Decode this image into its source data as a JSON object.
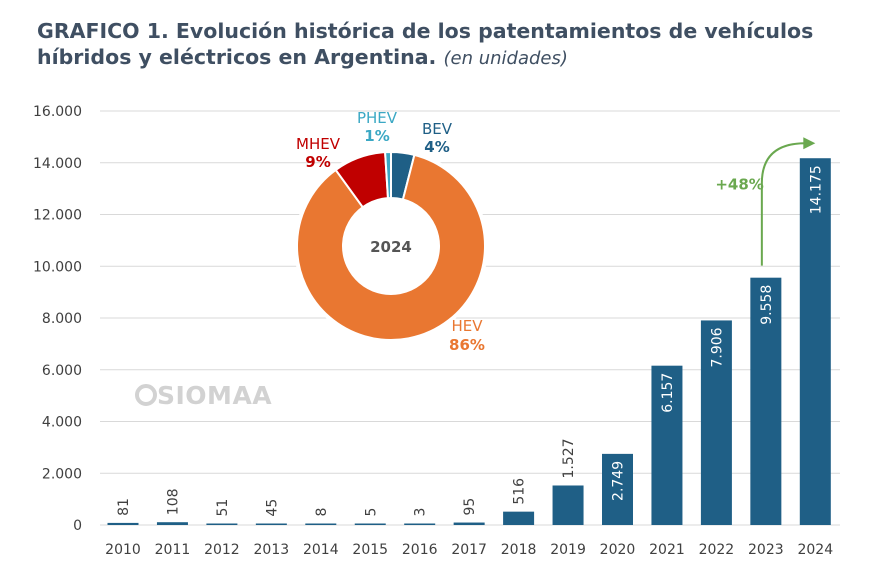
{
  "header": {
    "title": "GRAFICO 1. Evolución histórica de los patentamientos de vehículos híbridos y eléctricos en Argentina.",
    "subtitle": "(en unidades)"
  },
  "watermark": "SIOMAA",
  "colors": {
    "bar": "#1f5f86",
    "grid": "#d9d9d9",
    "axis_text": "#404040",
    "growth": "#6aa84f"
  },
  "chart_data": [
    {
      "type": "bar",
      "title": "GRAFICO 1. Evolución histórica de los patentamientos de vehículos híbridos y eléctricos en Argentina.",
      "subtitle": "(en unidades)",
      "xlabel": "",
      "ylabel": "",
      "categories": [
        "2010",
        "2011",
        "2012",
        "2013",
        "2014",
        "2015",
        "2016",
        "2017",
        "2018",
        "2019",
        "2020",
        "2021",
        "2022",
        "2023",
        "2024"
      ],
      "values": [
        81,
        108,
        51,
        45,
        8,
        5,
        3,
        95,
        516,
        1527,
        2749,
        6157,
        7906,
        9558,
        14175
      ],
      "value_labels": [
        "81",
        "108",
        "51",
        "45",
        "8",
        "5",
        "3",
        "95",
        "516",
        "1.527",
        "2.749",
        "6.157",
        "7.906",
        "9.558",
        "14.175"
      ],
      "ylim": [
        0,
        16000
      ],
      "yticks": [
        0,
        2000,
        4000,
        6000,
        8000,
        10000,
        12000,
        14000,
        16000
      ],
      "ytick_labels": [
        "0",
        "2.000",
        "4.000",
        "6.000",
        "8.000",
        "10.000",
        "12.000",
        "14.000",
        "16.000"
      ],
      "grid": true,
      "annotation": {
        "text": "+48%",
        "from": "2023",
        "to": "2024"
      }
    },
    {
      "type": "pie",
      "donut": true,
      "center_label": "2024",
      "slices": [
        {
          "name": "BEV",
          "label": "4%",
          "value": 4,
          "color": "#1f5f86"
        },
        {
          "name": "HEV",
          "label": "86%",
          "value": 86,
          "color": "#e97731"
        },
        {
          "name": "MHEV",
          "label": "9%",
          "value": 9,
          "color": "#c00000"
        },
        {
          "name": "PHEV",
          "label": "1%",
          "value": 1,
          "color": "#3ba8c4"
        }
      ]
    }
  ]
}
